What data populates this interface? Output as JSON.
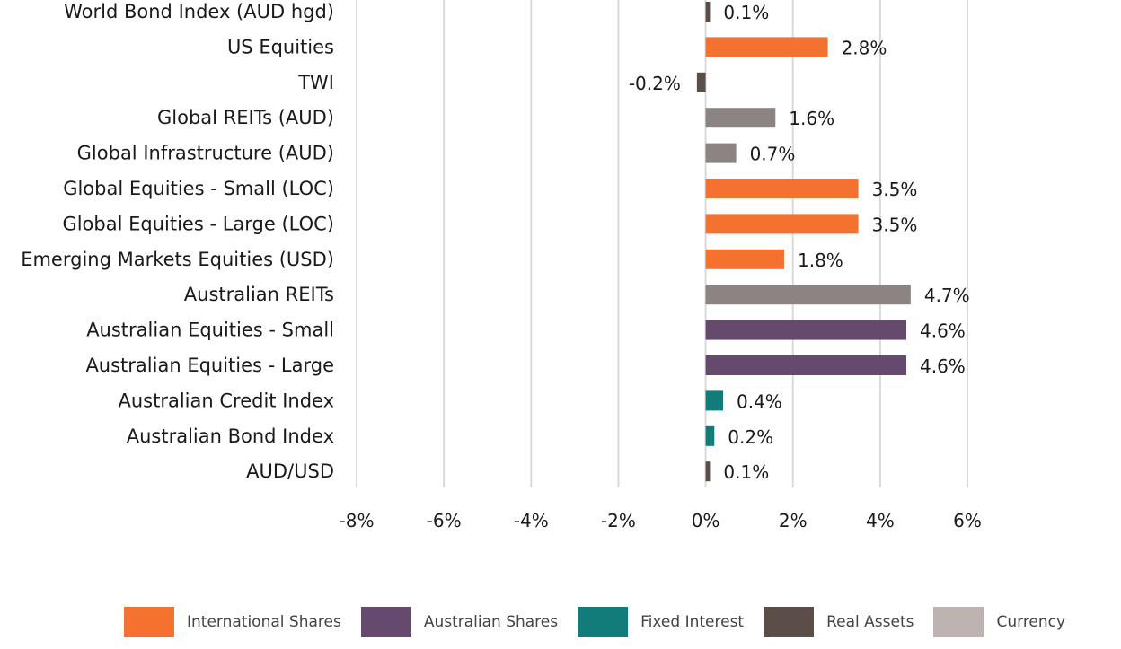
{
  "chart_data": {
    "type": "bar",
    "orientation": "horizontal",
    "title": "",
    "xlabel": "",
    "ylabel": "",
    "xlim": [
      -8,
      6
    ],
    "x_ticks": [
      -8,
      -6,
      -4,
      -2,
      0,
      2,
      4,
      6
    ],
    "x_tick_labels": [
      "-8%",
      "-6%",
      "-4%",
      "-2%",
      "0%",
      "2%",
      "4%",
      "6%"
    ],
    "grid": "vertical",
    "legend_position": "bottom",
    "categories": [
      "World Bond Index (AUD hgd)",
      "US Equities",
      "TWI",
      "Global REITs (AUD)",
      "Global Infrastructure (AUD)",
      "Global Equities - Small (LOC)",
      "Global Equities - Large (LOC)",
      "Emerging Markets Equities (USD)",
      "Australian REITs",
      "Australian Equities - Small",
      "Australian Equities - Large",
      "Australian Credit Index",
      "Australian Bond Index",
      "AUD/USD"
    ],
    "values": [
      0.1,
      2.8,
      -0.2,
      1.6,
      0.7,
      3.5,
      3.5,
      1.8,
      4.7,
      4.6,
      4.6,
      0.4,
      0.2,
      0.1
    ],
    "value_labels": [
      "0.1%",
      "2.8%",
      "-0.2%",
      "1.6%",
      "0.7%",
      "3.5%",
      "3.5%",
      "1.8%",
      "4.7%",
      "4.6%",
      "4.6%",
      "0.4%",
      "0.2%",
      "0.1%"
    ],
    "groups": [
      "Real Assets",
      "International Shares",
      "Real Assets",
      "Currency",
      "Currency",
      "International Shares",
      "International Shares",
      "International Shares",
      "Currency",
      "Australian Shares",
      "Australian Shares",
      "Fixed Interest",
      "Fixed Interest",
      "Real Assets"
    ],
    "bar_colors": [
      "#5b4d48",
      "#f47130",
      "#5b4d48",
      "#8c8482",
      "#8c8482",
      "#f47130",
      "#f47130",
      "#f47130",
      "#8c8482",
      "#664a6e",
      "#664a6e",
      "#117c7a",
      "#117c7a",
      "#5b4d48"
    ],
    "legend": [
      {
        "name": "International Shares",
        "color": "#f47130"
      },
      {
        "name": "Australian Shares",
        "color": "#664a6e"
      },
      {
        "name": "Fixed Interest",
        "color": "#117c7a"
      },
      {
        "name": "Real Assets",
        "color": "#5b4d48"
      },
      {
        "name": "Currency",
        "color": "#bdb4b1"
      }
    ]
  }
}
